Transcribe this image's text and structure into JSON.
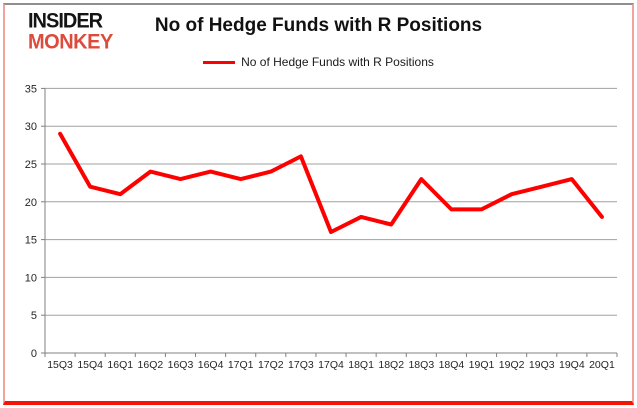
{
  "logo": {
    "line1": "INSIDER",
    "line2": "MONKEY"
  },
  "header": {
    "title": "No of Hedge Funds with R Positions"
  },
  "legend": {
    "label": "No of Hedge Funds with R Positions"
  },
  "chart_data": {
    "type": "line",
    "title": "No of Hedge Funds with R Positions",
    "categories": [
      "15Q3",
      "15Q4",
      "16Q1",
      "16Q2",
      "16Q3",
      "16Q4",
      "17Q1",
      "17Q2",
      "17Q3",
      "17Q4",
      "18Q1",
      "18Q2",
      "18Q3",
      "18Q4",
      "19Q1",
      "19Q2",
      "19Q3",
      "19Q4",
      "20Q1"
    ],
    "series": [
      {
        "name": "No of Hedge Funds with R Positions",
        "color": "#ff0000",
        "values": [
          29,
          22,
          21,
          24,
          23,
          24,
          23,
          24,
          26,
          16,
          18,
          17,
          23,
          19,
          19,
          21,
          22,
          23,
          18
        ]
      }
    ],
    "xlabel": "",
    "ylabel": "",
    "ylim": [
      0,
      35
    ],
    "ytick_step": 5,
    "grid": true,
    "legend_position": "top-center"
  },
  "colors": {
    "series_line": "#ff0000",
    "gridline": "#a0a0a0",
    "axis": "#808080",
    "tick_text": "#262626",
    "logo_black": "#141414",
    "logo_red": "#dd4b3c",
    "frame_bottom": "#f51505",
    "frame_sides": "#f0a49c",
    "frame_top": "#8f8f8f"
  }
}
